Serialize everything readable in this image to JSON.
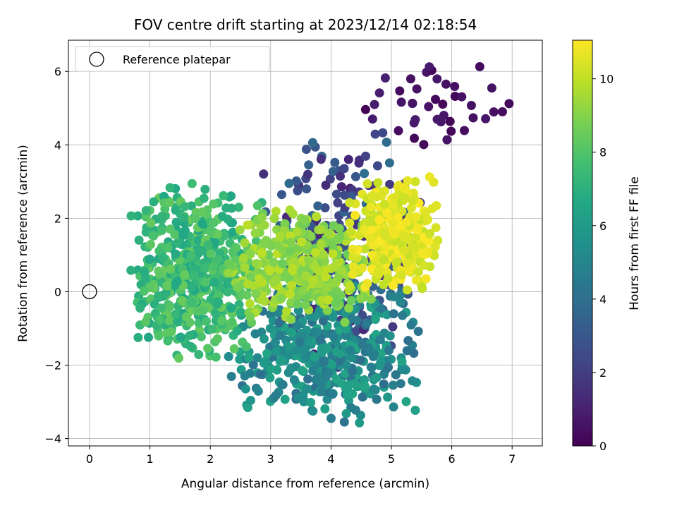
{
  "chart_data": {
    "type": "scatter",
    "title": "FOV centre drift starting at 2023/12/14 02:18:54",
    "xlabel": "Angular distance from reference (arcmin)",
    "ylabel": "Rotation from reference (arcmin)",
    "xlim": [
      -0.35,
      7.5
    ],
    "ylim": [
      -4.2,
      6.85
    ],
    "xticks": [
      0,
      1,
      2,
      3,
      4,
      5,
      6,
      7
    ],
    "yticks": [
      -4,
      -2,
      0,
      2,
      4,
      6
    ],
    "grid": true,
    "legend": {
      "location": "upper-left",
      "entries": [
        "Reference platepar"
      ]
    },
    "reference_point": {
      "x": 0,
      "y": 0,
      "label": "Reference platepar"
    },
    "colorbar": {
      "label": "Hours from first FF file",
      "colormap": "viridis",
      "range": [
        0,
        11.05
      ],
      "ticks": [
        0,
        2,
        4,
        6,
        8,
        10
      ]
    },
    "series_groups": [
      {
        "hours": [
          0.0,
          1.0
        ],
        "count": 42,
        "x_range": [
          4.2,
          7.15
        ],
        "y_range": [
          3.8,
          6.4
        ]
      },
      {
        "hours": [
          1.0,
          4.0
        ],
        "count": 230,
        "x_range": [
          2.8,
          5.6
        ],
        "y_range": [
          -2.1,
          4.7
        ]
      },
      {
        "hours": [
          4.0,
          6.5
        ],
        "count": 420,
        "x_range": [
          2.2,
          5.6
        ],
        "y_range": [
          -3.7,
          0.3
        ]
      },
      {
        "hours": [
          6.5,
          8.5
        ],
        "count": 520,
        "x_range": [
          0.6,
          2.9
        ],
        "y_range": [
          -2.0,
          3.1
        ]
      },
      {
        "hours": [
          8.5,
          10.0
        ],
        "count": 360,
        "x_range": [
          2.2,
          4.8
        ],
        "y_range": [
          -0.9,
          2.3
        ]
      },
      {
        "hours": [
          10.0,
          11.05
        ],
        "count": 280,
        "x_range": [
          4.2,
          5.9
        ],
        "y_range": [
          -0.1,
          3.2
        ]
      }
    ]
  }
}
